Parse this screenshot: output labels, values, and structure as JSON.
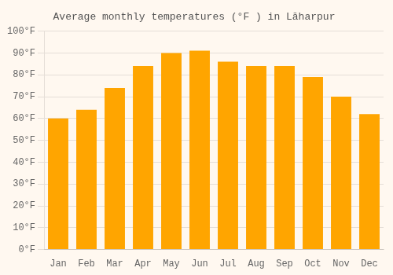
{
  "chart_data": {
    "type": "bar",
    "title": "Average monthly temperatures (°F ) in Lāharpur",
    "categories": [
      "Jan",
      "Feb",
      "Mar",
      "Apr",
      "May",
      "Jun",
      "Jul",
      "Aug",
      "Sep",
      "Oct",
      "Nov",
      "Dec"
    ],
    "values": [
      60,
      64,
      74,
      84,
      90,
      91,
      86,
      84,
      84,
      79,
      70,
      62
    ],
    "color": "#FFA500",
    "ylim": [
      0,
      100
    ],
    "yticks": [
      {
        "value": 0,
        "label": "0°F"
      },
      {
        "value": 10,
        "label": "10°F"
      },
      {
        "value": 20,
        "label": "20°F"
      },
      {
        "value": 30,
        "label": "30°F"
      },
      {
        "value": 40,
        "label": "40°F"
      },
      {
        "value": 50,
        "label": "50°F"
      },
      {
        "value": 60,
        "label": "60°F"
      },
      {
        "value": 70,
        "label": "70°F"
      },
      {
        "value": 80,
        "label": "80°F"
      },
      {
        "value": 90,
        "label": "90°F"
      },
      {
        "value": 100,
        "label": "100°F"
      }
    ],
    "grid": true
  }
}
